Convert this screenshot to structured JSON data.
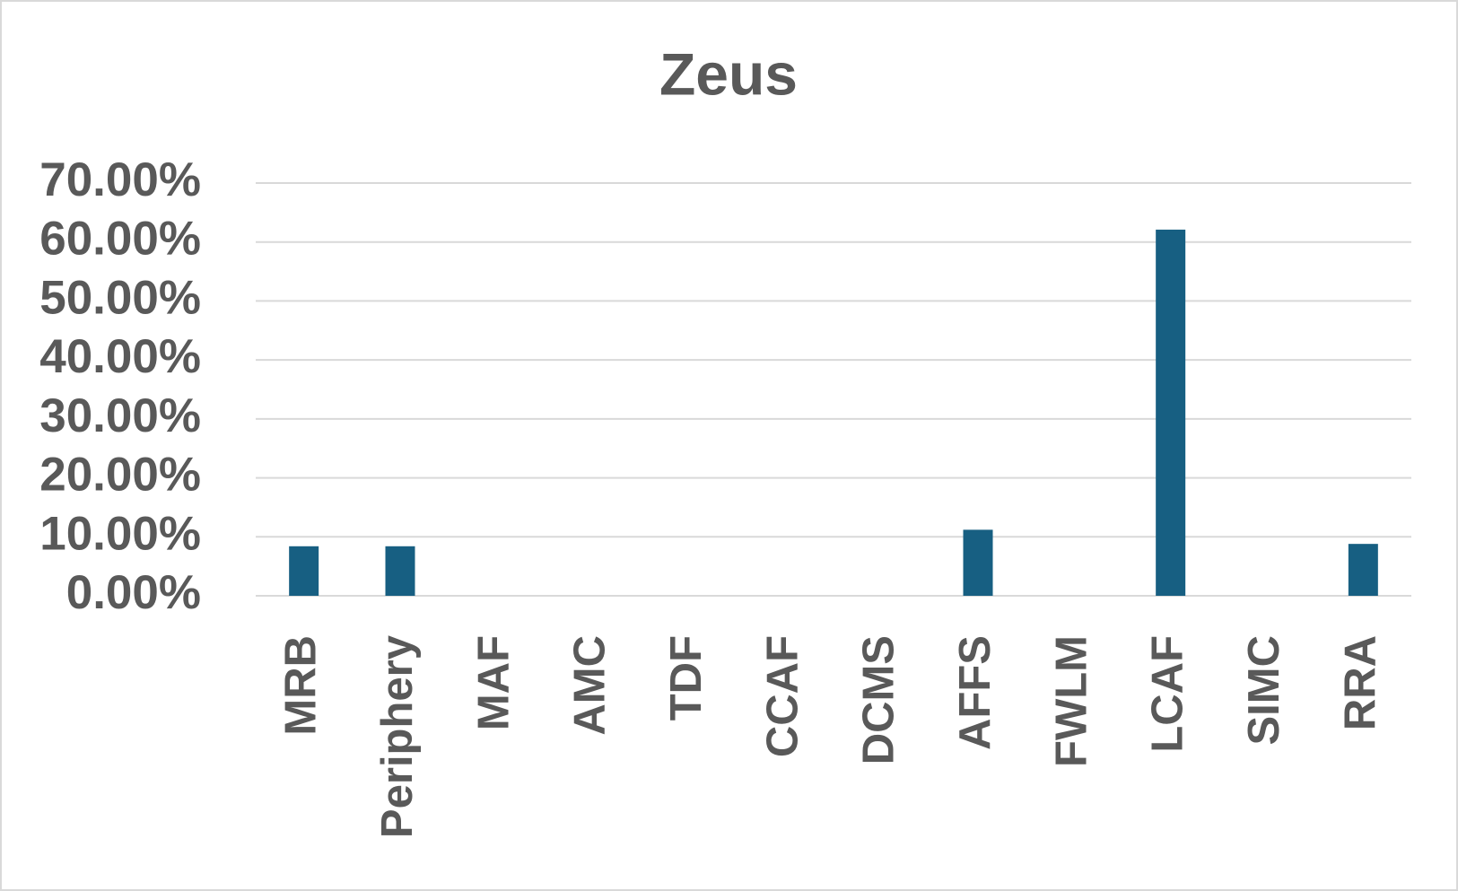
{
  "chart_data": {
    "type": "bar",
    "title": "Zeus",
    "categories": [
      "MRB",
      "Periphery",
      "MAF",
      "AMC",
      "TDF",
      "CCAF",
      "DCMS",
      "AFFS",
      "FWLM",
      "LCAF",
      "SIMC",
      "RRA"
    ],
    "values": [
      8.4,
      8.4,
      0,
      0,
      0,
      0,
      0,
      11.2,
      0,
      62.1,
      0,
      8.8
    ],
    "color": "#175f82",
    "ylim": [
      0,
      70
    ],
    "yticks": [
      {
        "value": 0,
        "label": "0.00%"
      },
      {
        "value": 10,
        "label": "10.00%"
      },
      {
        "value": 20,
        "label": "20.00%"
      },
      {
        "value": 30,
        "label": "30.00%"
      },
      {
        "value": 40,
        "label": "40.00%"
      },
      {
        "value": 50,
        "label": "50.00%"
      },
      {
        "value": 60,
        "label": "60.00%"
      },
      {
        "value": 70,
        "label": "70.00%"
      }
    ],
    "grid": true
  }
}
